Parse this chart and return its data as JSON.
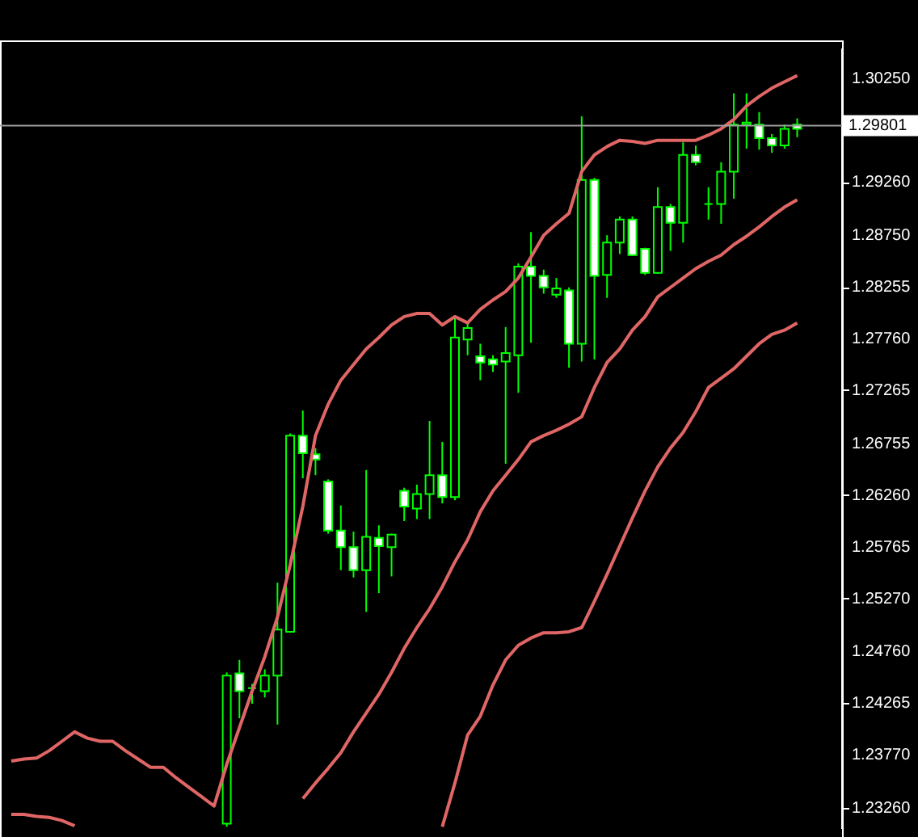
{
  "chart_data": {
    "type": "candlestick",
    "categories": [
      null,
      null,
      null,
      null,
      null,
      null,
      null,
      null,
      null,
      null,
      null,
      null,
      null,
      null,
      null,
      null,
      null,
      null,
      null,
      null,
      null,
      null,
      null,
      null,
      null,
      null,
      null,
      null,
      null,
      null,
      null,
      null,
      null,
      null,
      null,
      null,
      null,
      null,
      null,
      null,
      null,
      null,
      null,
      null,
      null,
      null,
      null,
      null,
      null,
      null,
      null,
      null,
      null,
      null,
      null,
      null,
      null,
      null,
      null,
      null,
      null,
      null,
      null,
      null,
      null
    ],
    "series": [
      {
        "color": "#00ff00",
        "colors": [
          null,
          null,
          null,
          null,
          null,
          null,
          null,
          null,
          null,
          null,
          null,
          null,
          null,
          null,
          null,
          null,
          null,
          "#000000",
          "#ffffff",
          null,
          "#000000",
          "#000000",
          "#000000",
          "#ffffff",
          "#ffffff",
          "#ffffff",
          "#ffffff",
          "#ffffff",
          "#000000",
          "#ffffff",
          "#000000",
          "#ffffff",
          "#000000",
          "#000000",
          "#ffffff",
          "#000000",
          "#000000",
          "#ffffff",
          "#ffffff",
          "#000000",
          "#000000",
          "#ffffff",
          "#ffffff",
          "#000000",
          "#ffffff",
          "#000000",
          "#ffffff",
          "#000000",
          "#000000",
          "#ffffff",
          "#ffffff",
          "#000000",
          "#ffffff",
          "#000000",
          "#ffffff",
          null,
          "#000000",
          "#000000",
          "#000000",
          "#ffffff",
          "#ffffff",
          "#000000",
          "#ffffff",
          null,
          null
        ],
        "ohlc": [
          null,
          null,
          null,
          null,
          null,
          null,
          null,
          null,
          null,
          null,
          null,
          null,
          null,
          null,
          null,
          null,
          null,
          [
            1.2311,
            1.2456,
            1.2308,
            1.2453
          ],
          [
            1.2455,
            1.2468,
            1.2412,
            1.2438
          ],
          [
            1.2441,
            1.2445,
            1.2426,
            1.2441
          ],
          [
            1.2438,
            1.2459,
            1.2432,
            1.2453
          ],
          [
            1.2453,
            1.2542,
            1.2406,
            1.2497
          ],
          [
            1.2495,
            1.2685,
            1.2494,
            1.2683
          ],
          [
            1.2683,
            1.2707,
            1.2642,
            1.2666
          ],
          [
            1.2665,
            1.2671,
            1.2645,
            1.266
          ],
          [
            1.2639,
            1.2641,
            1.2589,
            1.2592
          ],
          [
            1.2592,
            1.2616,
            1.2554,
            1.2576
          ],
          [
            1.2576,
            1.2591,
            1.2547,
            1.2554
          ],
          [
            1.2554,
            1.265,
            1.2514,
            1.2586
          ],
          [
            1.2585,
            1.2597,
            1.2532,
            1.2577
          ],
          [
            1.2576,
            1.2589,
            1.2548,
            1.2588
          ],
          [
            1.263,
            1.2633,
            1.2601,
            1.2615
          ],
          [
            1.2613,
            1.2636,
            1.2603,
            1.2627
          ],
          [
            1.2627,
            1.2697,
            1.2603,
            1.2645
          ],
          [
            1.2645,
            1.2677,
            1.2618,
            1.2624
          ],
          [
            1.2624,
            1.2798,
            1.2621,
            1.2777
          ],
          [
            1.2775,
            1.2793,
            1.276,
            1.2786
          ],
          [
            1.2759,
            1.2771,
            1.2736,
            1.2753
          ],
          [
            1.2756,
            1.276,
            1.2744,
            1.2751
          ],
          [
            1.2754,
            1.2787,
            1.2656,
            1.2762
          ],
          [
            1.276,
            1.2848,
            1.2724,
            1.2845
          ],
          [
            1.2845,
            1.2878,
            1.2772,
            1.2836
          ],
          [
            1.2836,
            1.2842,
            1.2819,
            1.2825
          ],
          [
            1.2818,
            1.2834,
            1.2815,
            1.2824
          ],
          [
            1.2822,
            1.2825,
            1.2748,
            1.2771
          ],
          [
            1.2771,
            1.2989,
            1.2754,
            1.2928
          ],
          [
            1.2928,
            1.293,
            1.2756,
            1.2836
          ],
          [
            1.2837,
            1.2875,
            1.2815,
            1.2868
          ],
          [
            1.2868,
            1.2893,
            1.2857,
            1.289
          ],
          [
            1.289,
            1.2893,
            1.2855,
            1.2856
          ],
          [
            1.2862,
            1.2863,
            1.2837,
            1.2839
          ],
          [
            1.2839,
            1.2921,
            1.2838,
            1.2902
          ],
          [
            1.2902,
            1.2905,
            1.286,
            1.2887
          ],
          [
            1.2887,
            1.2964,
            1.2868,
            1.2952
          ],
          [
            1.2952,
            1.2961,
            1.2942,
            1.2945
          ],
          [
            1.2905,
            1.2921,
            1.289,
            1.2905
          ],
          [
            1.2905,
            1.2945,
            1.2886,
            1.2936
          ],
          [
            1.2936,
            1.3011,
            1.291,
            1.2981
          ],
          [
            1.2981,
            1.3011,
            1.2958,
            1.2983
          ],
          [
            1.2981,
            1.2993,
            1.2957,
            1.2968
          ],
          [
            1.2968,
            1.2972,
            1.2954,
            1.2961
          ],
          [
            1.2961,
            1.2981,
            1.2958,
            1.2977
          ],
          [
            1.2981,
            1.2987,
            1.2969,
            1.2977
          ],
          null,
          null
        ]
      },
      {
        "type": "line",
        "color": "#e06666",
        "values": [
          1.2371,
          1.2373,
          1.2374,
          1.2381,
          1.239,
          1.2399,
          1.2393,
          1.239,
          1.239,
          1.2381,
          1.2373,
          1.2365,
          1.2365,
          1.2355,
          1.2346,
          1.2337,
          1.2328,
          1.2368,
          1.2403,
          1.2438,
          1.2471,
          1.2509,
          1.2559,
          1.2615,
          1.2683,
          1.2713,
          1.2736,
          1.2751,
          1.2766,
          1.2777,
          1.2789,
          1.2797,
          1.28,
          1.28,
          1.2789,
          1.2797,
          1.2791,
          1.2804,
          1.2813,
          1.2821,
          1.2834,
          1.2854,
          1.2875,
          1.2886,
          1.2896,
          1.2936,
          1.2952,
          1.296,
          1.2966,
          1.2965,
          1.2963,
          1.2966,
          1.2966,
          1.2966,
          1.2966,
          1.2971,
          1.2977,
          1.2986,
          1.2999,
          1.3008,
          1.3016,
          1.3022,
          1.3028,
          null,
          null
        ]
      },
      {
        "type": "line",
        "color": "#e06666",
        "values": [
          1.232,
          1.232,
          1.2318,
          1.2317,
          1.2314,
          1.2309,
          null,
          null,
          null,
          null,
          null,
          null,
          null,
          null,
          null,
          null,
          null,
          null,
          null,
          null,
          null,
          null,
          null,
          1.2335,
          1.235,
          1.2364,
          1.2379,
          1.2399,
          1.2417,
          1.2435,
          1.2456,
          1.2479,
          1.2499,
          1.2517,
          1.2538,
          1.2562,
          1.2583,
          1.261,
          1.263,
          1.2645,
          1.266,
          1.2677,
          1.2683,
          1.2688,
          1.2694,
          1.2701,
          1.2729,
          1.2753,
          1.2766,
          1.2784,
          1.2797,
          1.2816,
          1.2825,
          1.2834,
          1.2843,
          1.285,
          1.2856,
          1.2866,
          1.2874,
          1.2883,
          1.2893,
          1.2902,
          1.2909,
          null,
          null
        ]
      },
      {
        "type": "line",
        "color": "#e06666",
        "values": [
          null,
          null,
          null,
          null,
          null,
          null,
          null,
          null,
          null,
          null,
          null,
          null,
          null,
          null,
          null,
          null,
          null,
          null,
          null,
          null,
          null,
          null,
          null,
          null,
          null,
          null,
          null,
          null,
          null,
          null,
          null,
          null,
          null,
          null,
          1.2308,
          1.235,
          1.2396,
          1.2414,
          1.2444,
          1.2468,
          1.2482,
          1.2489,
          1.2494,
          1.2494,
          1.2495,
          1.2499,
          1.2524,
          1.255,
          1.2577,
          1.2604,
          1.263,
          1.2653,
          1.2671,
          1.2686,
          1.2706,
          1.2729,
          1.2738,
          1.2747,
          1.2759,
          1.2771,
          1.278,
          1.2784,
          1.2791,
          null,
          null
        ]
      }
    ],
    "ylim": [
      1.2306,
      1.3054
    ],
    "yticks": [
      {
        "value": 1.3025,
        "label": "1.30250"
      },
      {
        "value": 1.2926,
        "label": "1.29260"
      },
      {
        "value": 1.2875,
        "label": "1.28750"
      },
      {
        "value": 1.28255,
        "label": "1.28255"
      },
      {
        "value": 1.2776,
        "label": "1.27760"
      },
      {
        "value": 1.27265,
        "label": "1.27265"
      },
      {
        "value": 1.26755,
        "label": "1.26755"
      },
      {
        "value": 1.2626,
        "label": "1.26260"
      },
      {
        "value": 1.25765,
        "label": "1.25765"
      },
      {
        "value": 1.2527,
        "label": "1.25270"
      },
      {
        "value": 1.2476,
        "label": "1.24760"
      },
      {
        "value": 1.24265,
        "label": "1.24265"
      },
      {
        "value": 1.2377,
        "label": "1.23770"
      },
      {
        "value": 1.2326,
        "label": "1.23260"
      }
    ],
    "ref_lines": [
      {
        "axis": "y",
        "value": 1.29801,
        "label": "1.29801",
        "color": "#a0a0a0"
      }
    ],
    "tick_labels": "y",
    "grid": false
  }
}
